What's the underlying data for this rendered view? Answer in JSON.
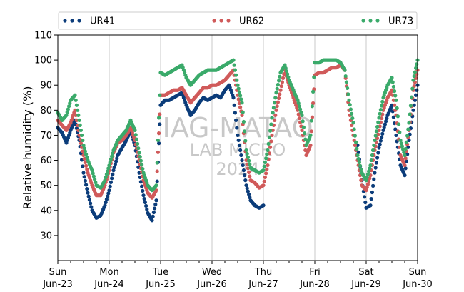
{
  "chart_data": {
    "type": "scatter",
    "ylabel": "Relative humidity (%)",
    "ylim": [
      20,
      110
    ],
    "yticks": [
      30,
      40,
      50,
      60,
      70,
      80,
      90,
      100,
      110
    ],
    "xlim": [
      "2024-06-23",
      "2024-06-30"
    ],
    "xticks": [
      {
        "day": "Sun",
        "date": "Jun-23"
      },
      {
        "day": "Mon",
        "date": "Jun-24"
      },
      {
        "day": "Tue",
        "date": "Jun-25"
      },
      {
        "day": "Wed",
        "date": "Jun-26"
      },
      {
        "day": "Thu",
        "date": "Jun-27"
      },
      {
        "day": "Fri",
        "date": "Jun-28"
      },
      {
        "day": "Sat",
        "date": "Jun-29"
      },
      {
        "day": "Sun",
        "date": "Jun-30"
      }
    ],
    "grid": "vertical",
    "legend_position": "top",
    "watermark": [
      "IAG-MATAO",
      "LAB MICRO",
      "2024"
    ],
    "series": [
      {
        "name": "UR41",
        "color": "#0b3c7a",
        "x": [
          "2024-06-23 00:00",
          "2024-06-23 02:00",
          "2024-06-23 04:00",
          "2024-06-23 06:00",
          "2024-06-23 08:00",
          "2024-06-23 10:00",
          "2024-06-23 12:00",
          "2024-06-23 14:00",
          "2024-06-23 16:00",
          "2024-06-23 18:00",
          "2024-06-23 20:00",
          "2024-06-23 22:00",
          "2024-06-24 00:00",
          "2024-06-24 02:00",
          "2024-06-24 04:00",
          "2024-06-24 06:00",
          "2024-06-24 08:00",
          "2024-06-24 10:00",
          "2024-06-24 12:00",
          "2024-06-24 14:00",
          "2024-06-24 16:00",
          "2024-06-24 18:00",
          "2024-06-24 20:00",
          "2024-06-24 22:00",
          "2024-06-25 00:00",
          "2024-06-25 02:00",
          "2024-06-25 04:00",
          "2024-06-25 06:00",
          "2024-06-25 08:00",
          "2024-06-25 10:00",
          "2024-06-25 12:00",
          "2024-06-25 14:00",
          "2024-06-25 16:00",
          "2024-06-25 18:00",
          "2024-06-25 20:00",
          "2024-06-25 22:00",
          "2024-06-26 00:00",
          "2024-06-26 02:00",
          "2024-06-26 04:00",
          "2024-06-26 06:00",
          "2024-06-26 08:00",
          "2024-06-26 10:00",
          "2024-06-26 12:00",
          "2024-06-26 14:00",
          "2024-06-26 16:00",
          "2024-06-26 18:00",
          "2024-06-26 20:00",
          "2024-06-26 22:00",
          "2024-06-27 00:00",
          "2024-06-28 20:00",
          "2024-06-28 22:00",
          "2024-06-29 00:00",
          "2024-06-29 02:00",
          "2024-06-29 04:00",
          "2024-06-29 06:00",
          "2024-06-29 08:00",
          "2024-06-29 10:00",
          "2024-06-29 12:00",
          "2024-06-29 14:00",
          "2024-06-29 16:00",
          "2024-06-29 18:00",
          "2024-06-29 20:00",
          "2024-06-29 22:00",
          "2024-06-30 00:00"
        ],
        "y": [
          73,
          71,
          67,
          72,
          76,
          68,
          55,
          47,
          40,
          37,
          38,
          42,
          48,
          56,
          62,
          65,
          68,
          72,
          66,
          55,
          46,
          39,
          36,
          44,
          82,
          84,
          84,
          85,
          86,
          87,
          82,
          78,
          80,
          83,
          85,
          84,
          85,
          86,
          85,
          88,
          90,
          85,
          70,
          60,
          50,
          44,
          42,
          41,
          42,
          66,
          52,
          41,
          42,
          55,
          65,
          72,
          78,
          82,
          70,
          58,
          54,
          68,
          80,
          90
        ]
      },
      {
        "name": "UR62",
        "color": "#d05a5a",
        "x": [
          "2024-06-23 00:00",
          "2024-06-23 02:00",
          "2024-06-23 04:00",
          "2024-06-23 06:00",
          "2024-06-23 08:00",
          "2024-06-23 10:00",
          "2024-06-23 12:00",
          "2024-06-23 14:00",
          "2024-06-23 16:00",
          "2024-06-23 18:00",
          "2024-06-23 20:00",
          "2024-06-23 22:00",
          "2024-06-24 00:00",
          "2024-06-24 02:00",
          "2024-06-24 04:00",
          "2024-06-24 06:00",
          "2024-06-24 08:00",
          "2024-06-24 10:00",
          "2024-06-24 12:00",
          "2024-06-24 14:00",
          "2024-06-24 16:00",
          "2024-06-24 18:00",
          "2024-06-24 20:00",
          "2024-06-24 22:00",
          "2024-06-25 00:00",
          "2024-06-25 02:00",
          "2024-06-25 04:00",
          "2024-06-25 06:00",
          "2024-06-25 08:00",
          "2024-06-25 10:00",
          "2024-06-25 12:00",
          "2024-06-25 14:00",
          "2024-06-25 16:00",
          "2024-06-25 18:00",
          "2024-06-25 20:00",
          "2024-06-25 22:00",
          "2024-06-26 00:00",
          "2024-06-26 02:00",
          "2024-06-26 04:00",
          "2024-06-26 06:00",
          "2024-06-26 08:00",
          "2024-06-26 10:00",
          "2024-06-26 12:00",
          "2024-06-26 14:00",
          "2024-06-26 16:00",
          "2024-06-26 18:00",
          "2024-06-26 20:00",
          "2024-06-26 22:00",
          "2024-06-27 00:00",
          "2024-06-27 02:00",
          "2024-06-27 04:00",
          "2024-06-27 06:00",
          "2024-06-27 08:00",
          "2024-06-27 10:00",
          "2024-06-27 12:00",
          "2024-06-27 14:00",
          "2024-06-27 16:00",
          "2024-06-27 18:00",
          "2024-06-27 20:00",
          "2024-06-27 22:00",
          "2024-06-28 00:00",
          "2024-06-28 02:00",
          "2024-06-28 04:00",
          "2024-06-28 06:00",
          "2024-06-28 08:00",
          "2024-06-28 10:00",
          "2024-06-28 12:00",
          "2024-06-28 14:00",
          "2024-06-28 16:00",
          "2024-06-28 18:00",
          "2024-06-28 20:00",
          "2024-06-28 22:00",
          "2024-06-29 00:00",
          "2024-06-29 02:00",
          "2024-06-29 04:00",
          "2024-06-29 06:00",
          "2024-06-29 08:00",
          "2024-06-29 10:00",
          "2024-06-29 12:00",
          "2024-06-29 14:00",
          "2024-06-29 16:00",
          "2024-06-29 18:00",
          "2024-06-29 20:00",
          "2024-06-29 22:00",
          "2024-06-30 00:00"
        ],
        "y": [
          76,
          74,
          72,
          75,
          80,
          70,
          62,
          55,
          50,
          46,
          46,
          50,
          56,
          63,
          67,
          68,
          70,
          73,
          68,
          60,
          52,
          47,
          45,
          48,
          86,
          86,
          87,
          88,
          88,
          89,
          86,
          83,
          85,
          87,
          89,
          89,
          90,
          90,
          91,
          92,
          94,
          96,
          86,
          78,
          60,
          52,
          51,
          49,
          50,
          58,
          70,
          80,
          88,
          96,
          90,
          85,
          80,
          72,
          62,
          66,
          94,
          95,
          95,
          96,
          97,
          97,
          98,
          96,
          80,
          70,
          60,
          50,
          48,
          54,
          64,
          72,
          80,
          85,
          88,
          78,
          62,
          58,
          72,
          88,
          96
        ]
      },
      {
        "name": "UR73",
        "color": "#3aaa6a",
        "x": [
          "2024-06-23 00:00",
          "2024-06-23 02:00",
          "2024-06-23 04:00",
          "2024-06-23 06:00",
          "2024-06-23 08:00",
          "2024-06-23 10:00",
          "2024-06-23 12:00",
          "2024-06-23 14:00",
          "2024-06-23 16:00",
          "2024-06-23 18:00",
          "2024-06-23 20:00",
          "2024-06-23 22:00",
          "2024-06-24 00:00",
          "2024-06-24 02:00",
          "2024-06-24 04:00",
          "2024-06-24 06:00",
          "2024-06-24 08:00",
          "2024-06-24 10:00",
          "2024-06-24 12:00",
          "2024-06-24 14:00",
          "2024-06-24 16:00",
          "2024-06-24 18:00",
          "2024-06-24 20:00",
          "2024-06-24 22:00",
          "2024-06-25 00:00",
          "2024-06-25 02:00",
          "2024-06-25 04:00",
          "2024-06-25 06:00",
          "2024-06-25 08:00",
          "2024-06-25 10:00",
          "2024-06-25 12:00",
          "2024-06-25 14:00",
          "2024-06-25 16:00",
          "2024-06-25 18:00",
          "2024-06-25 20:00",
          "2024-06-25 22:00",
          "2024-06-26 00:00",
          "2024-06-26 02:00",
          "2024-06-26 04:00",
          "2024-06-26 06:00",
          "2024-06-26 08:00",
          "2024-06-26 10:00",
          "2024-06-26 12:00",
          "2024-06-26 14:00",
          "2024-06-26 16:00",
          "2024-06-26 18:00",
          "2024-06-26 20:00",
          "2024-06-26 22:00",
          "2024-06-27 00:00",
          "2024-06-27 02:00",
          "2024-06-27 04:00",
          "2024-06-27 06:00",
          "2024-06-27 08:00",
          "2024-06-27 10:00",
          "2024-06-27 12:00",
          "2024-06-27 14:00",
          "2024-06-27 16:00",
          "2024-06-27 18:00",
          "2024-06-27 20:00",
          "2024-06-27 22:00",
          "2024-06-28 00:00",
          "2024-06-28 02:00",
          "2024-06-28 04:00",
          "2024-06-28 06:00",
          "2024-06-28 08:00",
          "2024-06-28 10:00",
          "2024-06-28 12:00",
          "2024-06-28 14:00",
          "2024-06-28 16:00",
          "2024-06-28 18:00",
          "2024-06-28 20:00",
          "2024-06-28 22:00",
          "2024-06-29 00:00",
          "2024-06-29 02:00",
          "2024-06-29 04:00",
          "2024-06-29 06:00",
          "2024-06-29 08:00",
          "2024-06-29 10:00",
          "2024-06-29 12:00",
          "2024-06-29 14:00",
          "2024-06-29 16:00",
          "2024-06-29 18:00",
          "2024-06-29 20:00",
          "2024-06-29 22:00",
          "2024-06-30 00:00"
        ],
        "y": [
          79,
          76,
          78,
          84,
          86,
          76,
          66,
          60,
          56,
          50,
          49,
          52,
          58,
          64,
          68,
          70,
          72,
          76,
          72,
          63,
          55,
          50,
          48,
          50,
          95,
          94,
          95,
          96,
          97,
          98,
          93,
          90,
          92,
          94,
          95,
          96,
          96,
          96,
          97,
          98,
          99,
          100,
          90,
          83,
          64,
          57,
          56,
          55,
          56,
          64,
          77,
          87,
          95,
          98,
          92,
          88,
          84,
          78,
          66,
          70,
          99,
          99,
          100,
          100,
          100,
          100,
          99,
          96,
          84,
          75,
          62,
          55,
          52,
          58,
          68,
          77,
          85,
          90,
          93,
          84,
          68,
          62,
          75,
          92,
          100
        ]
      }
    ]
  }
}
